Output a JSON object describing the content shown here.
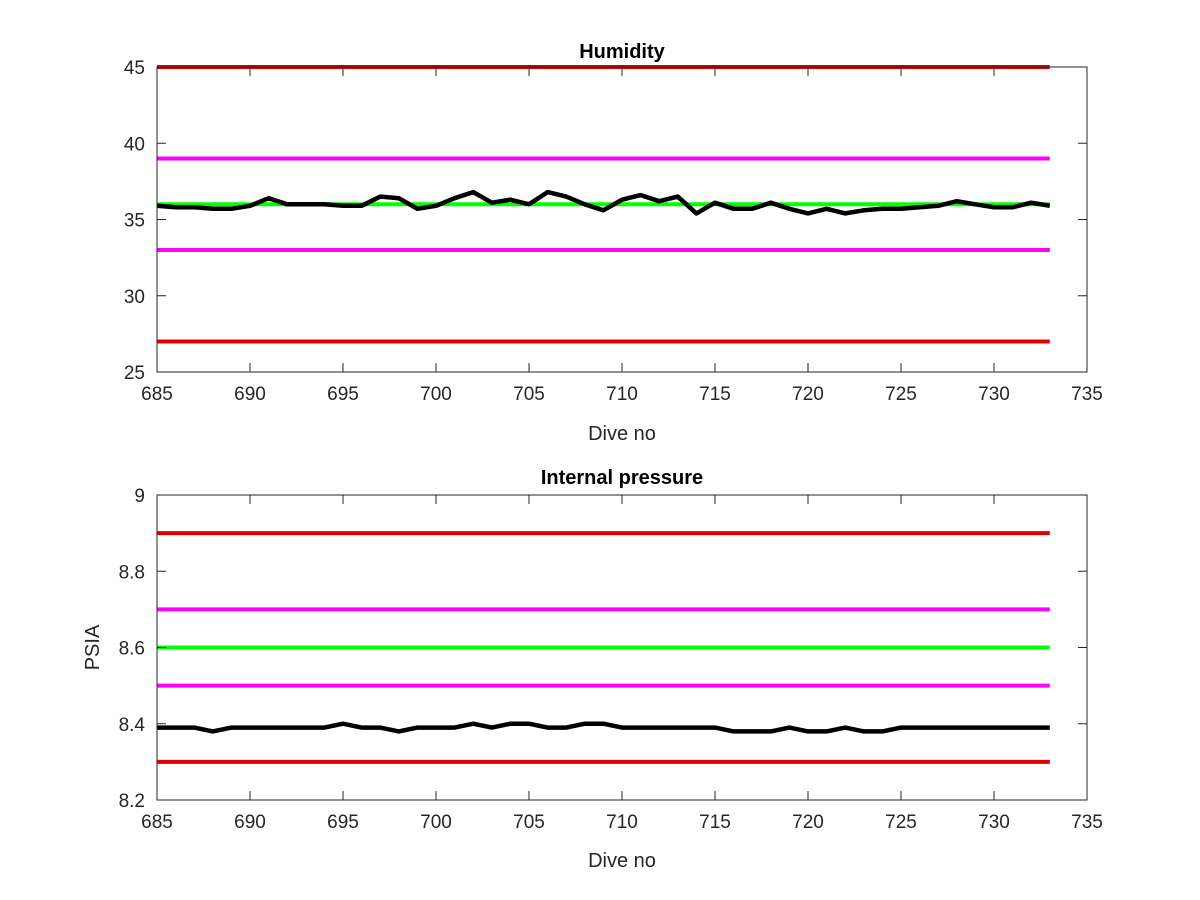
{
  "figure": {
    "background": "#ffffff"
  },
  "chart_data": [
    {
      "type": "line",
      "title": "Humidity",
      "xlabel": "Dive no",
      "ylabel": "",
      "xlim": [
        685,
        735
      ],
      "ylim": [
        25,
        45
      ],
      "xticks": [
        685,
        690,
        695,
        700,
        705,
        710,
        715,
        720,
        725,
        730,
        735
      ],
      "yticks": [
        25,
        30,
        35,
        40,
        45
      ],
      "grid": false,
      "legend": "none",
      "series": [
        {
          "role": "upper limit",
          "color": "#e00000",
          "x": [
            685,
            733
          ],
          "values": [
            45,
            45
          ]
        },
        {
          "role": "upper warning",
          "color": "#ff00ff",
          "x": [
            685,
            733
          ],
          "values": [
            39,
            39
          ]
        },
        {
          "role": "target",
          "color": "#00ff00",
          "x": [
            685,
            733
          ],
          "values": [
            36,
            36
          ]
        },
        {
          "role": "lower warning",
          "color": "#ff00ff",
          "x": [
            685,
            733
          ],
          "values": [
            33,
            33
          ]
        },
        {
          "role": "lower limit",
          "color": "#e00000",
          "x": [
            685,
            733
          ],
          "values": [
            27,
            27
          ]
        },
        {
          "role": "measured",
          "color": "#000000",
          "x": [
            685,
            686,
            687,
            688,
            689,
            690,
            691,
            692,
            693,
            694,
            695,
            696,
            697,
            698,
            699,
            700,
            701,
            702,
            703,
            704,
            705,
            706,
            707,
            708,
            709,
            710,
            711,
            712,
            713,
            714,
            715,
            716,
            717,
            718,
            719,
            720,
            721,
            722,
            723,
            724,
            725,
            726,
            727,
            728,
            729,
            730,
            731,
            732,
            733
          ],
          "values": [
            35.9,
            35.8,
            35.8,
            35.7,
            35.7,
            35.9,
            36.4,
            36.0,
            36.0,
            36.0,
            35.9,
            35.9,
            36.5,
            36.4,
            35.7,
            35.9,
            36.4,
            36.8,
            36.1,
            36.3,
            36.0,
            36.8,
            36.5,
            36.0,
            35.6,
            36.3,
            36.6,
            36.2,
            36.5,
            35.4,
            36.1,
            35.7,
            35.7,
            36.1,
            35.7,
            35.4,
            35.7,
            35.4,
            35.6,
            35.7,
            35.7,
            35.8,
            35.9,
            36.2,
            36.0,
            35.8,
            35.8,
            36.1,
            35.9
          ]
        }
      ]
    },
    {
      "type": "line",
      "title": "Internal pressure",
      "xlabel": "Dive no",
      "ylabel": "PSIA",
      "xlim": [
        685,
        735
      ],
      "ylim": [
        8.2,
        9
      ],
      "xticks": [
        685,
        690,
        695,
        700,
        705,
        710,
        715,
        720,
        725,
        730,
        735
      ],
      "yticks": [
        "8.2",
        "8.4",
        "8.6",
        "8.8",
        "9"
      ],
      "grid": false,
      "legend": "none",
      "series": [
        {
          "role": "upper limit",
          "color": "#e00000",
          "x": [
            685,
            733
          ],
          "values": [
            8.9,
            8.9
          ]
        },
        {
          "role": "upper warning",
          "color": "#ff00ff",
          "x": [
            685,
            733
          ],
          "values": [
            8.7,
            8.7
          ]
        },
        {
          "role": "target",
          "color": "#00ff00",
          "x": [
            685,
            733
          ],
          "values": [
            8.6,
            8.6
          ]
        },
        {
          "role": "lower warning",
          "color": "#ff00ff",
          "x": [
            685,
            733
          ],
          "values": [
            8.5,
            8.5
          ]
        },
        {
          "role": "lower limit",
          "color": "#e00000",
          "x": [
            685,
            733
          ],
          "values": [
            8.3,
            8.3
          ]
        },
        {
          "role": "measured",
          "color": "#000000",
          "x": [
            685,
            686,
            687,
            688,
            689,
            690,
            691,
            692,
            693,
            694,
            695,
            696,
            697,
            698,
            699,
            700,
            701,
            702,
            703,
            704,
            705,
            706,
            707,
            708,
            709,
            710,
            711,
            712,
            713,
            714,
            715,
            716,
            717,
            718,
            719,
            720,
            721,
            722,
            723,
            724,
            725,
            726,
            727,
            728,
            729,
            730,
            731,
            732,
            733
          ],
          "values": [
            8.39,
            8.39,
            8.39,
            8.38,
            8.39,
            8.39,
            8.39,
            8.39,
            8.39,
            8.39,
            8.4,
            8.39,
            8.39,
            8.38,
            8.39,
            8.39,
            8.39,
            8.4,
            8.39,
            8.4,
            8.4,
            8.39,
            8.39,
            8.4,
            8.4,
            8.39,
            8.39,
            8.39,
            8.39,
            8.39,
            8.39,
            8.38,
            8.38,
            8.38,
            8.39,
            8.38,
            8.38,
            8.39,
            8.38,
            8.38,
            8.39,
            8.39,
            8.39,
            8.39,
            8.39,
            8.39,
            8.39,
            8.39,
            8.39
          ]
        }
      ]
    }
  ]
}
